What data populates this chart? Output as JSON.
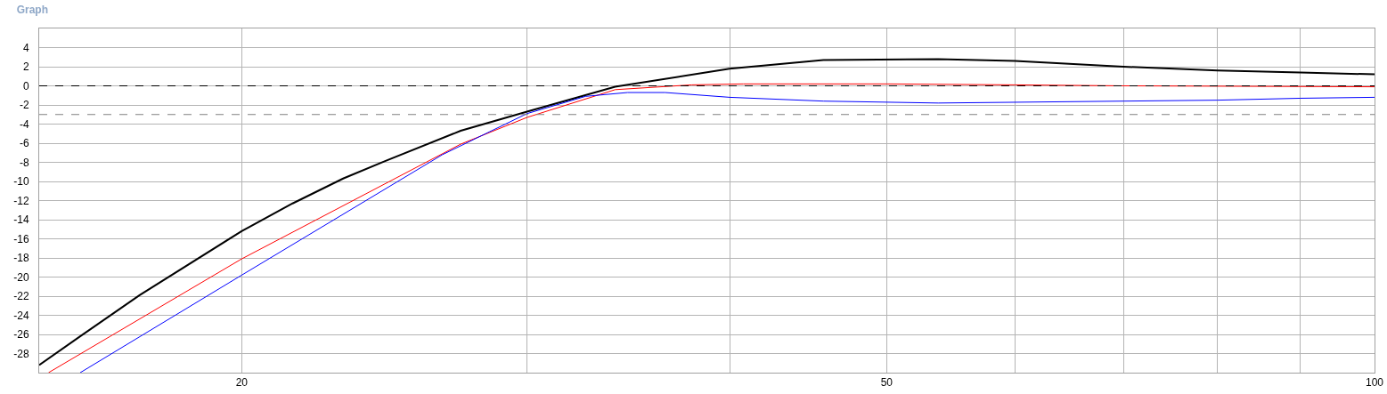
{
  "chart_data": {
    "type": "line",
    "title": "Graph",
    "log": "x",
    "grid": true,
    "line_style": "solid",
    "marker": "none",
    "xlim": [
      15,
      100
    ],
    "xticks": [
      20,
      {
        "value": 30,
        "label": null
      },
      {
        "value": 40,
        "label": null
      },
      50,
      {
        "value": 60,
        "label": null
      },
      {
        "value": 70,
        "label": null
      },
      {
        "value": 80,
        "label": null
      },
      {
        "value": 90,
        "label": null
      },
      100
    ],
    "ylim": [
      -30,
      6
    ],
    "yticks": [
      {
        "value": -30,
        "label": null
      },
      -28,
      -26,
      -24,
      -22,
      -20,
      -18,
      -16,
      -14,
      -12,
      -10,
      -8,
      -6,
      -4,
      -2,
      0,
      2,
      4,
      {
        "value": 6,
        "label": null
      }
    ],
    "ref_lines": [
      {
        "axis": "y",
        "value": 0,
        "color": "#000000",
        "line_style": "dashed"
      },
      {
        "axis": "y",
        "value": -3,
        "color": "#808080",
        "line_style": "dashed"
      }
    ],
    "series": [
      {
        "color": "#000000",
        "x": [
          15,
          15.9,
          17.3,
          20,
          21.5,
          23.1,
          24.5,
          27.3,
          30,
          34,
          40,
          45.7,
          53.8,
          60,
          70,
          80,
          90,
          100
        ],
        "values": [
          -29.2,
          -26.2,
          -21.9,
          -15.2,
          -12.3,
          -9.7,
          -7.9,
          -4.7,
          -2.7,
          -0.1,
          1.8,
          2.7,
          2.8,
          2.6,
          2,
          1.6,
          1.4,
          1.2
        ]
      },
      {
        "color": "#ff0000",
        "x": [
          15.2,
          20,
          27.3,
          30,
          34,
          37.9,
          40.8,
          50,
          60,
          70,
          100
        ],
        "values": [
          -30,
          -18.1,
          -6.1,
          -3.3,
          -0.4,
          0.1,
          0.2,
          0.2,
          0.1,
          0,
          -0.1
        ]
      },
      {
        "color": "#0000ff",
        "x": [
          15.9,
          20,
          26.6,
          30,
          32.6,
          34.6,
          36.5,
          40,
          45.7,
          53.8,
          70,
          80,
          90,
          100
        ],
        "values": [
          -30,
          -19.8,
          -7.2,
          -2.9,
          -1.1,
          -0.7,
          -0.7,
          -1.2,
          -1.6,
          -1.8,
          -1.6,
          -1.5,
          -1.3,
          -1.2
        ]
      }
    ]
  }
}
